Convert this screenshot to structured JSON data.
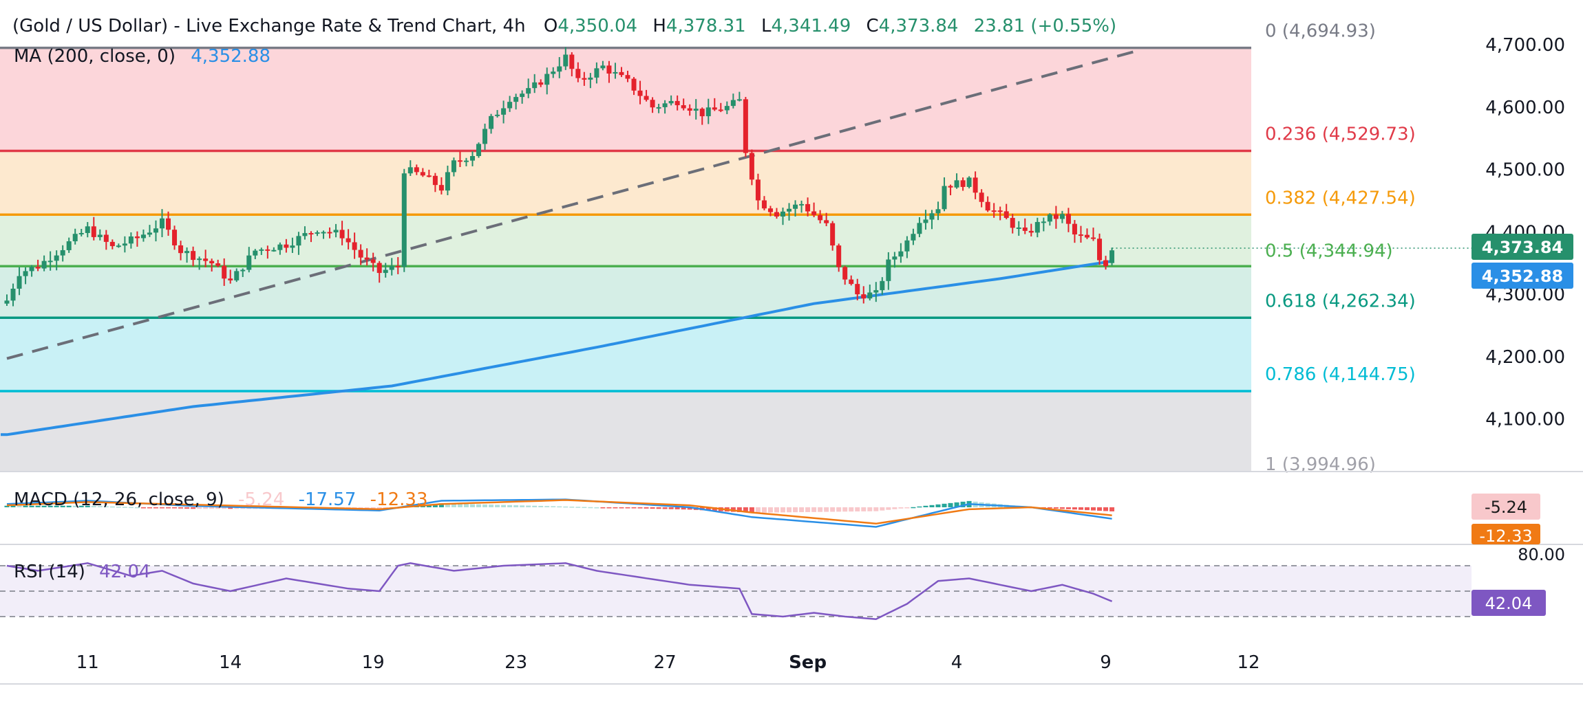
{
  "header": {
    "title": "(Gold / US Dollar) - Live Exchange Rate & Trend Chart, 4h",
    "ohlc": [
      {
        "key": "O",
        "value": "4,350.04"
      },
      {
        "key": "H",
        "value": "4,378.31"
      },
      {
        "key": "L",
        "value": "4,341.49"
      },
      {
        "key": "C",
        "value": "4,373.84"
      }
    ],
    "change": "23.81 (+0.55%)"
  },
  "ma": {
    "label": "MA (200, close, 0)",
    "value": "4,352.88"
  },
  "macd": {
    "label": "MACD (12, 26, close, 9)",
    "hist": "-5.24",
    "macd": "-17.57",
    "signal": "-12.33"
  },
  "rsi": {
    "label": "RSI (14)",
    "value": "42.04",
    "upper_tick": "80.00"
  },
  "price_badges": {
    "last": "4,373.84",
    "ma": "4,352.88"
  },
  "colors": {
    "up": "#26906c",
    "down": "#e4222c",
    "ma": "#2a8fe6",
    "macd": "#2a8fe6",
    "signal": "#f07a14",
    "rsi": "#7e57c2",
    "fib0": "#787b86",
    "fib236": "#e03a48",
    "fib382": "#f59a0a",
    "fib5": "#4caf50",
    "fib618": "#089981",
    "fib786": "#00bcd4",
    "fib1": "#a0a0a8",
    "trend": "#6b6e78"
  },
  "chart_data": {
    "type": "candlestick",
    "instrument": "Gold / US Dollar",
    "interval": "4h",
    "x_ticks": [
      {
        "label": "11",
        "bar": 13
      },
      {
        "label": "14",
        "bar": 36
      },
      {
        "label": "19",
        "bar": 59
      },
      {
        "label": "23",
        "bar": 82
      },
      {
        "label": "27",
        "bar": 106
      },
      {
        "label": "Sep",
        "bar": 129
      },
      {
        "label": "4",
        "bar": 153
      },
      {
        "label": "9",
        "bar": 177
      },
      {
        "label": "12",
        "bar": 200
      }
    ],
    "y_ticks": [
      "4,100.00",
      "4,200.00",
      "4,300.00",
      "4,400.00",
      "4,500.00",
      "4,600.00",
      "4,700.00"
    ],
    "ylim": [
      3995,
      4700
    ],
    "fib_levels": [
      {
        "ratio": "0",
        "price": 4694.93,
        "label": "(4,694.93)"
      },
      {
        "ratio": "0.236",
        "price": 4529.73,
        "label": "(4,529.73)"
      },
      {
        "ratio": "0.382",
        "price": 4427.54,
        "label": "(4,427.54)"
      },
      {
        "ratio": "0.5",
        "price": 4344.94,
        "label": "(4,344.94)"
      },
      {
        "ratio": "0.618",
        "price": 4262.34,
        "label": "(4,262.34)"
      },
      {
        "ratio": "0.786",
        "price": 4144.75,
        "label": "(4,144.75)"
      },
      {
        "ratio": "1",
        "price": 3994.96,
        "label": "(3,994.96)"
      }
    ],
    "close_keypoints": [
      [
        0,
        4290
      ],
      [
        2,
        4335
      ],
      [
        5,
        4345
      ],
      [
        9,
        4375
      ],
      [
        13,
        4405
      ],
      [
        17,
        4375
      ],
      [
        21,
        4390
      ],
      [
        25,
        4415
      ],
      [
        28,
        4370
      ],
      [
        33,
        4350
      ],
      [
        36,
        4320
      ],
      [
        40,
        4370
      ],
      [
        45,
        4380
      ],
      [
        50,
        4405
      ],
      [
        54,
        4395
      ],
      [
        57,
        4360
      ],
      [
        60,
        4335
      ],
      [
        63,
        4345
      ],
      [
        64,
        4500
      ],
      [
        67,
        4490
      ],
      [
        70,
        4470
      ],
      [
        72,
        4510
      ],
      [
        75,
        4525
      ],
      [
        78,
        4580
      ],
      [
        81,
        4615
      ],
      [
        84,
        4625
      ],
      [
        87,
        4650
      ],
      [
        90,
        4680
      ],
      [
        92,
        4640
      ],
      [
        96,
        4665
      ],
      [
        100,
        4640
      ],
      [
        104,
        4600
      ],
      [
        108,
        4610
      ],
      [
        112,
        4590
      ],
      [
        116,
        4600
      ],
      [
        118,
        4610
      ],
      [
        119,
        4530
      ],
      [
        121,
        4450
      ],
      [
        124,
        4430
      ],
      [
        128,
        4445
      ],
      [
        132,
        4410
      ],
      [
        134,
        4340
      ],
      [
        137,
        4300
      ],
      [
        140,
        4300
      ],
      [
        142,
        4350
      ],
      [
        145,
        4385
      ],
      [
        147,
        4420
      ],
      [
        150,
        4440
      ],
      [
        151,
        4475
      ],
      [
        155,
        4480
      ],
      [
        158,
        4440
      ],
      [
        161,
        4420
      ],
      [
        164,
        4395
      ],
      [
        167,
        4420
      ],
      [
        170,
        4425
      ],
      [
        172,
        4395
      ],
      [
        175,
        4385
      ],
      [
        176,
        4355
      ],
      [
        177,
        4350
      ],
      [
        178,
        4374
      ]
    ],
    "ma200_keypoints": [
      [
        0,
        4075
      ],
      [
        30,
        4120
      ],
      [
        62,
        4153
      ],
      [
        95,
        4215
      ],
      [
        130,
        4285
      ],
      [
        160,
        4325
      ],
      [
        178,
        4353
      ]
    ],
    "trend_line": {
      "from": [
        0,
        4197
      ],
      "to": [
        182,
        4690
      ],
      "style": "dashed"
    },
    "macd_series": {
      "names": [
        "MACD",
        "Signal",
        "Histogram"
      ],
      "zero_band_note": "",
      "macd_keypoints": [
        [
          0,
          5
        ],
        [
          13,
          10
        ],
        [
          30,
          2
        ],
        [
          60,
          -5
        ],
        [
          70,
          10
        ],
        [
          90,
          12
        ],
        [
          110,
          0
        ],
        [
          120,
          -15
        ],
        [
          140,
          -30
        ],
        [
          155,
          5
        ],
        [
          165,
          0
        ],
        [
          178,
          -17.57
        ]
      ],
      "signal_keypoints": [
        [
          0,
          3
        ],
        [
          13,
          8
        ],
        [
          30,
          4
        ],
        [
          60,
          -3
        ],
        [
          70,
          5
        ],
        [
          90,
          11
        ],
        [
          110,
          3
        ],
        [
          120,
          -8
        ],
        [
          140,
          -25
        ],
        [
          155,
          -3
        ],
        [
          165,
          0
        ],
        [
          178,
          -12.33
        ]
      ]
    },
    "rsi_keypoints": [
      [
        0,
        70
      ],
      [
        5,
        66
      ],
      [
        13,
        72
      ],
      [
        20,
        62
      ],
      [
        25,
        66
      ],
      [
        30,
        56
      ],
      [
        36,
        50
      ],
      [
        45,
        60
      ],
      [
        55,
        52
      ],
      [
        60,
        50
      ],
      [
        63,
        70
      ],
      [
        65,
        72
      ],
      [
        72,
        66
      ],
      [
        80,
        70
      ],
      [
        90,
        72
      ],
      [
        95,
        66
      ],
      [
        110,
        55
      ],
      [
        118,
        52
      ],
      [
        120,
        32
      ],
      [
        125,
        30
      ],
      [
        130,
        33
      ],
      [
        135,
        30
      ],
      [
        140,
        28
      ],
      [
        145,
        40
      ],
      [
        150,
        58
      ],
      [
        155,
        60
      ],
      [
        160,
        55
      ],
      [
        165,
        50
      ],
      [
        170,
        55
      ],
      [
        175,
        48
      ],
      [
        178,
        42
      ]
    ],
    "rsi_levels": [
      70,
      50,
      30
    ]
  }
}
